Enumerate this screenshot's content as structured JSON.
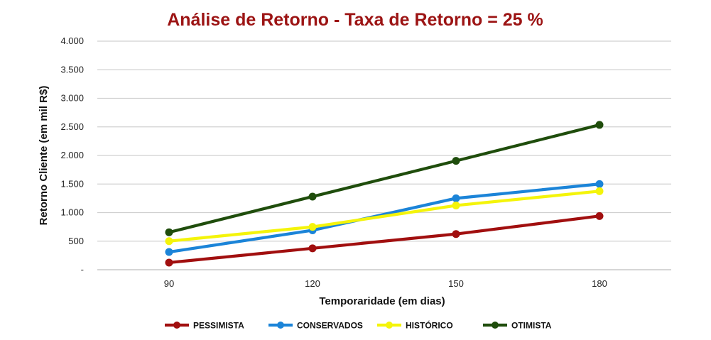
{
  "chart_data": {
    "type": "line",
    "title": "Análise de Retorno - Taxa de Retorno = 25 %",
    "xlabel": "Temporaridade (em dias)",
    "ylabel": "Retorno Cliente (em mil R$)",
    "categories": [
      "90",
      "120",
      "150",
      "180"
    ],
    "ylim": [
      0,
      4000
    ],
    "yticks": [
      0,
      500,
      1000,
      1500,
      2000,
      2500,
      3000,
      3500,
      4000
    ],
    "ytick_labels": [
      "-",
      "500",
      "1.000",
      "1.500",
      "2.000",
      "2.500",
      "3.000",
      "3.500",
      "4.000"
    ],
    "grid": true,
    "legend_position": "bottom",
    "series": [
      {
        "name": "PESSIMISTA",
        "color": "#a10f0f",
        "values": [
          125,
          375,
          625,
          940
        ]
      },
      {
        "name": "CONSERVADOS",
        "color": "#1b84d8",
        "values": [
          310,
          690,
          1250,
          1500
        ]
      },
      {
        "name": "HISTÓRICO",
        "color": "#f4f40a",
        "values": [
          500,
          750,
          1125,
          1375
        ]
      },
      {
        "name": "OTIMISTA",
        "color": "#1f4d0c",
        "values": [
          655,
          1280,
          1905,
          2535
        ]
      }
    ],
    "title_color": "#9c1414"
  }
}
